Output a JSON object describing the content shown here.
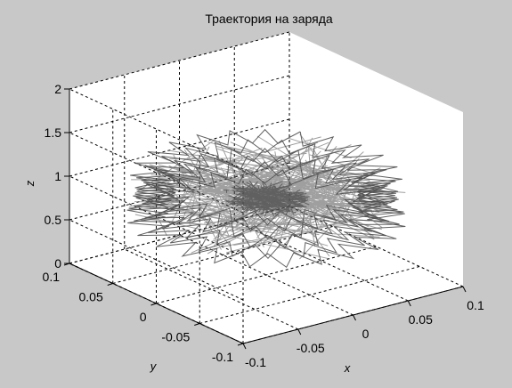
{
  "chart_data": {
    "type": "line3d",
    "title": "Траектория на заряда",
    "xlabel": "x",
    "ylabel": "y",
    "zlabel": "z",
    "xlim": [
      -0.1,
      0.1
    ],
    "ylim": [
      -0.1,
      0.1
    ],
    "zlim": [
      0,
      2
    ],
    "x_ticks": [
      "-0.1",
      "-0.05",
      "0",
      "0.05",
      "0.1"
    ],
    "y_ticks": [
      "-0.1",
      "-0.05",
      "0",
      "0.05",
      "0.1"
    ],
    "z_ticks": [
      "0",
      "0.5",
      "1",
      "1.5",
      "2"
    ],
    "grid": true,
    "box": true,
    "series": [
      {
        "color": "#505050",
        "description": "charge trajectory forming a dense star-shaped disc",
        "radius_max": 0.1,
        "z_range": [
          0.65,
          1.12
        ],
        "tips": 24
      }
    ]
  },
  "colors": {
    "figure_bg": "#c8c8c8",
    "axes_bg": "#ffffff",
    "line": "#505050"
  }
}
